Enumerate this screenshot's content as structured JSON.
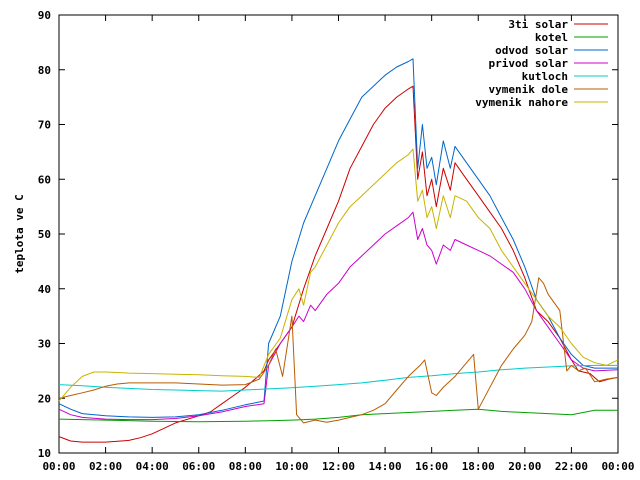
{
  "chart_data": {
    "type": "line",
    "title": "",
    "xlabel": "",
    "ylabel": "teplota ve C",
    "ylim": [
      10,
      90
    ],
    "xlim": [
      0,
      24
    ],
    "yticks": [
      "10",
      "20",
      "30",
      "40",
      "50",
      "60",
      "70",
      "80",
      "90"
    ],
    "xticks": [
      "00:00",
      "02:00",
      "04:00",
      "06:00",
      "08:00",
      "10:00",
      "12:00",
      "14:00",
      "16:00",
      "18:00",
      "20:00",
      "22:00",
      "00:00"
    ],
    "grid": false,
    "legend_position": "top-right",
    "series": [
      {
        "name": "3ti solar",
        "color": "#cc0000",
        "points": [
          [
            0,
            13
          ],
          [
            0.5,
            12.2
          ],
          [
            1,
            12
          ],
          [
            2,
            12
          ],
          [
            3,
            12.3
          ],
          [
            3.5,
            12.8
          ],
          [
            4,
            13.5
          ],
          [
            4.5,
            14.5
          ],
          [
            5,
            15.5
          ],
          [
            6,
            16.8
          ],
          [
            6.5,
            17.5
          ],
          [
            7,
            19
          ],
          [
            7.5,
            20.5
          ],
          [
            8,
            22
          ],
          [
            8.5,
            23.8
          ],
          [
            8.8,
            25
          ],
          [
            9,
            27
          ],
          [
            9.5,
            30
          ],
          [
            10,
            33
          ],
          [
            10.5,
            40
          ],
          [
            11,
            46
          ],
          [
            11.5,
            51
          ],
          [
            12,
            56
          ],
          [
            12.5,
            62
          ],
          [
            13,
            66
          ],
          [
            13.5,
            70
          ],
          [
            14,
            73
          ],
          [
            14.5,
            75
          ],
          [
            15,
            76.5
          ],
          [
            15.2,
            77
          ],
          [
            15.4,
            60
          ],
          [
            15.6,
            65
          ],
          [
            15.8,
            57
          ],
          [
            16,
            60
          ],
          [
            16.2,
            55
          ],
          [
            16.5,
            62
          ],
          [
            16.8,
            58
          ],
          [
            17,
            63
          ],
          [
            17.5,
            60
          ],
          [
            18,
            57
          ],
          [
            18.5,
            54
          ],
          [
            19,
            51
          ],
          [
            19.5,
            47
          ],
          [
            20,
            42
          ],
          [
            20.5,
            36
          ],
          [
            21,
            34
          ],
          [
            21.5,
            31
          ],
          [
            22,
            27
          ],
          [
            22.3,
            25
          ],
          [
            22.8,
            24.5
          ],
          [
            23.2,
            23
          ],
          [
            23.6,
            23.5
          ],
          [
            24,
            23.8
          ]
        ]
      },
      {
        "name": "kotel",
        "color": "#00a000",
        "points": [
          [
            0,
            16.2
          ],
          [
            2,
            16
          ],
          [
            4,
            15.8
          ],
          [
            6,
            15.7
          ],
          [
            8,
            15.8
          ],
          [
            9,
            15.9
          ],
          [
            10,
            16
          ],
          [
            11,
            16.2
          ],
          [
            12,
            16.5
          ],
          [
            13,
            17
          ],
          [
            14,
            17.2
          ],
          [
            15,
            17.4
          ],
          [
            16,
            17.6
          ],
          [
            17,
            17.8
          ],
          [
            18,
            18
          ],
          [
            19,
            17.6
          ],
          [
            20,
            17.4
          ],
          [
            21,
            17.2
          ],
          [
            22,
            17
          ],
          [
            23,
            17.8
          ],
          [
            24,
            17.8
          ]
        ]
      },
      {
        "name": "odvod solar",
        "color": "#0066cc",
        "points": [
          [
            0,
            19
          ],
          [
            0.5,
            18
          ],
          [
            1,
            17.2
          ],
          [
            2,
            16.8
          ],
          [
            3,
            16.6
          ],
          [
            4,
            16.5
          ],
          [
            5,
            16.6
          ],
          [
            6,
            17
          ],
          [
            7,
            17.8
          ],
          [
            8,
            18.8
          ],
          [
            8.8,
            19.5
          ],
          [
            9,
            30
          ],
          [
            9.5,
            35
          ],
          [
            10,
            45
          ],
          [
            10.5,
            52
          ],
          [
            11,
            57
          ],
          [
            11.5,
            62
          ],
          [
            12,
            67
          ],
          [
            12.5,
            71
          ],
          [
            13,
            75
          ],
          [
            13.5,
            77
          ],
          [
            14,
            79
          ],
          [
            14.5,
            80.5
          ],
          [
            15,
            81.5
          ],
          [
            15.2,
            82
          ],
          [
            15.4,
            62
          ],
          [
            15.6,
            70
          ],
          [
            15.8,
            62
          ],
          [
            16,
            64
          ],
          [
            16.2,
            59
          ],
          [
            16.5,
            67
          ],
          [
            16.8,
            62
          ],
          [
            17,
            66
          ],
          [
            17.5,
            63
          ],
          [
            18,
            60
          ],
          [
            18.5,
            57
          ],
          [
            19,
            53
          ],
          [
            19.5,
            49
          ],
          [
            20,
            44
          ],
          [
            20.5,
            38
          ],
          [
            21,
            35
          ],
          [
            21.5,
            31
          ],
          [
            22,
            28
          ],
          [
            22.5,
            26
          ],
          [
            23,
            25.5
          ],
          [
            23.5,
            25.5
          ],
          [
            24,
            25.5
          ]
        ]
      },
      {
        "name": "privod solar",
        "color": "#cc00cc",
        "points": [
          [
            0,
            18
          ],
          [
            0.5,
            17
          ],
          [
            1,
            16.5
          ],
          [
            2,
            16.2
          ],
          [
            3,
            16.1
          ],
          [
            4,
            16.1
          ],
          [
            5,
            16.3
          ],
          [
            6,
            16.8
          ],
          [
            7,
            17.5
          ],
          [
            8,
            18.5
          ],
          [
            8.8,
            19
          ],
          [
            9,
            26
          ],
          [
            9.5,
            30
          ],
          [
            10,
            33
          ],
          [
            10.3,
            35
          ],
          [
            10.5,
            34
          ],
          [
            10.8,
            37
          ],
          [
            11,
            36
          ],
          [
            11.5,
            39
          ],
          [
            12,
            41
          ],
          [
            12.5,
            44
          ],
          [
            13,
            46
          ],
          [
            13.5,
            48
          ],
          [
            14,
            50
          ],
          [
            14.5,
            51.5
          ],
          [
            15,
            53
          ],
          [
            15.2,
            54
          ],
          [
            15.4,
            49
          ],
          [
            15.6,
            51
          ],
          [
            15.8,
            48
          ],
          [
            16,
            47
          ],
          [
            16.2,
            44.5
          ],
          [
            16.5,
            48
          ],
          [
            16.8,
            47
          ],
          [
            17,
            49
          ],
          [
            17.5,
            48
          ],
          [
            18,
            47
          ],
          [
            18.5,
            46
          ],
          [
            19,
            44.5
          ],
          [
            19.5,
            43
          ],
          [
            20,
            40
          ],
          [
            20.5,
            36
          ],
          [
            21,
            33
          ],
          [
            21.5,
            30
          ],
          [
            22,
            27
          ],
          [
            22.5,
            25.5
          ],
          [
            23,
            25
          ],
          [
            24,
            25.2
          ]
        ]
      },
      {
        "name": "kutloch",
        "color": "#00cccc",
        "points": [
          [
            0,
            22.5
          ],
          [
            1,
            22.3
          ],
          [
            2,
            22
          ],
          [
            3,
            21.8
          ],
          [
            4,
            21.6
          ],
          [
            5,
            21.5
          ],
          [
            6,
            21.4
          ],
          [
            7,
            21.3
          ],
          [
            8,
            21.5
          ],
          [
            9,
            21.7
          ],
          [
            10,
            21.9
          ],
          [
            11,
            22.2
          ],
          [
            12,
            22.5
          ],
          [
            13,
            22.8
          ],
          [
            14,
            23.3
          ],
          [
            15,
            23.8
          ],
          [
            16,
            24.1
          ],
          [
            17,
            24.5
          ],
          [
            18,
            24.8
          ],
          [
            19,
            25.2
          ],
          [
            20,
            25.5
          ],
          [
            21,
            25.7
          ],
          [
            22,
            25.9
          ],
          [
            23,
            26
          ],
          [
            24,
            26
          ]
        ]
      },
      {
        "name": "vymenik dole",
        "color": "#b85c00",
        "points": [
          [
            0,
            20
          ],
          [
            0.5,
            20.5
          ],
          [
            1,
            21
          ],
          [
            1.5,
            21.5
          ],
          [
            2,
            22.2
          ],
          [
            2.5,
            22.6
          ],
          [
            3,
            22.8
          ],
          [
            4,
            22.8
          ],
          [
            5,
            22.8
          ],
          [
            6,
            22.6
          ],
          [
            7,
            22.4
          ],
          [
            8,
            22.5
          ],
          [
            8.6,
            23.5
          ],
          [
            9,
            26
          ],
          [
            9.3,
            29
          ],
          [
            9.6,
            24
          ],
          [
            10,
            35
          ],
          [
            10.2,
            17
          ],
          [
            10.5,
            15.5
          ],
          [
            11,
            16
          ],
          [
            11.5,
            15.6
          ],
          [
            12,
            16
          ],
          [
            12.5,
            16.5
          ],
          [
            13,
            17
          ],
          [
            13.5,
            17.8
          ],
          [
            14,
            19
          ],
          [
            14.5,
            21.5
          ],
          [
            15,
            24
          ],
          [
            15.5,
            26
          ],
          [
            15.7,
            27
          ],
          [
            16,
            21
          ],
          [
            16.2,
            20.5
          ],
          [
            16.5,
            22
          ],
          [
            17,
            24
          ],
          [
            17.5,
            26.5
          ],
          [
            17.8,
            28
          ],
          [
            18,
            18
          ],
          [
            18.5,
            22
          ],
          [
            19,
            26
          ],
          [
            19.5,
            29
          ],
          [
            20,
            31.5
          ],
          [
            20.3,
            34
          ],
          [
            20.6,
            42
          ],
          [
            20.8,
            41
          ],
          [
            21,
            39
          ],
          [
            21.5,
            36
          ],
          [
            21.8,
            25
          ],
          [
            22,
            26
          ],
          [
            22.3,
            25
          ],
          [
            22.6,
            25.5
          ],
          [
            23,
            23
          ],
          [
            23.5,
            23.5
          ],
          [
            24,
            23.8
          ]
        ]
      },
      {
        "name": "vymenik nahore",
        "color": "#c8b400",
        "points": [
          [
            0,
            19.5
          ],
          [
            0.5,
            22
          ],
          [
            1,
            24
          ],
          [
            1.5,
            24.8
          ],
          [
            2,
            24.8
          ],
          [
            3,
            24.6
          ],
          [
            4,
            24.5
          ],
          [
            5,
            24.4
          ],
          [
            6,
            24.3
          ],
          [
            7,
            24.1
          ],
          [
            8,
            24
          ],
          [
            8.6,
            23.8
          ],
          [
            9,
            28
          ],
          [
            9.5,
            31
          ],
          [
            10,
            38
          ],
          [
            10.3,
            40
          ],
          [
            10.5,
            37
          ],
          [
            10.8,
            43
          ],
          [
            11,
            44
          ],
          [
            11.5,
            48
          ],
          [
            12,
            52
          ],
          [
            12.5,
            55
          ],
          [
            13,
            57
          ],
          [
            13.5,
            59
          ],
          [
            14,
            61
          ],
          [
            14.5,
            63
          ],
          [
            15,
            64.5
          ],
          [
            15.2,
            65.5
          ],
          [
            15.4,
            56
          ],
          [
            15.6,
            58
          ],
          [
            15.8,
            53
          ],
          [
            16,
            55
          ],
          [
            16.2,
            51
          ],
          [
            16.5,
            57
          ],
          [
            16.8,
            53
          ],
          [
            17,
            57
          ],
          [
            17.5,
            56
          ],
          [
            18,
            53
          ],
          [
            18.5,
            51
          ],
          [
            19,
            47
          ],
          [
            19.5,
            44
          ],
          [
            20,
            41
          ],
          [
            20.5,
            38
          ],
          [
            21,
            35
          ],
          [
            21.5,
            33
          ],
          [
            22,
            30
          ],
          [
            22.5,
            27.5
          ],
          [
            23,
            26.5
          ],
          [
            23.5,
            26
          ],
          [
            24,
            27
          ]
        ]
      }
    ]
  }
}
